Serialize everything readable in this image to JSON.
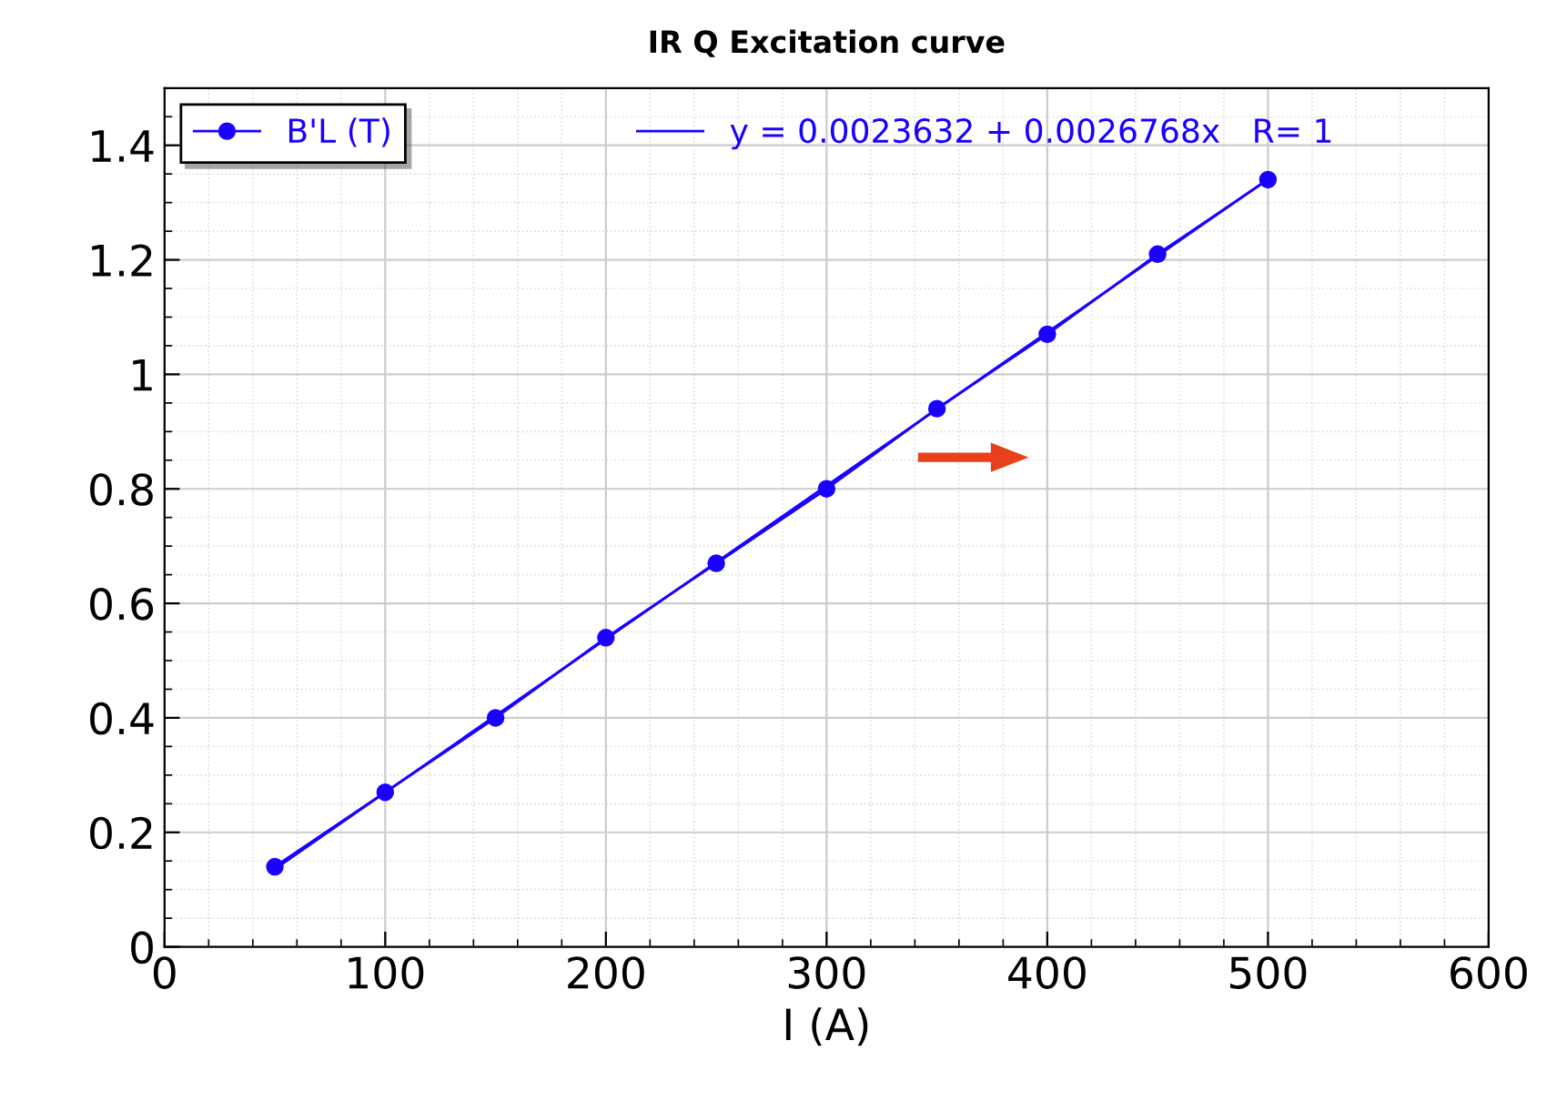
{
  "chart_data": {
    "type": "line",
    "title": "IR Q Excitation curve",
    "xlabel": "I (A)",
    "x": [
      50,
      100,
      150,
      200,
      250,
      300,
      350,
      400,
      450,
      500
    ],
    "series": [
      {
        "name": "B'L (T)",
        "color": "#1a00ff",
        "marker": "circle",
        "values": [
          0.14,
          0.27,
          0.4,
          0.54,
          0.67,
          0.8,
          0.94,
          1.07,
          1.21,
          1.34
        ]
      },
      {
        "name": "y = 0.0023632 + 0.0026768x   R= 1",
        "color": "#1a00ff",
        "marker": "none",
        "x": [
          50,
          500
        ],
        "values": [
          0.136,
          1.341
        ]
      }
    ],
    "xlim": [
      0,
      600
    ],
    "xticks": [
      0,
      100,
      200,
      300,
      400,
      500,
      600
    ],
    "ylim": [
      0,
      1.5
    ],
    "yticks": [
      0,
      0.2,
      0.4,
      0.6,
      0.8,
      1,
      1.2,
      1.4
    ],
    "grid": true,
    "legend": "top left"
  }
}
